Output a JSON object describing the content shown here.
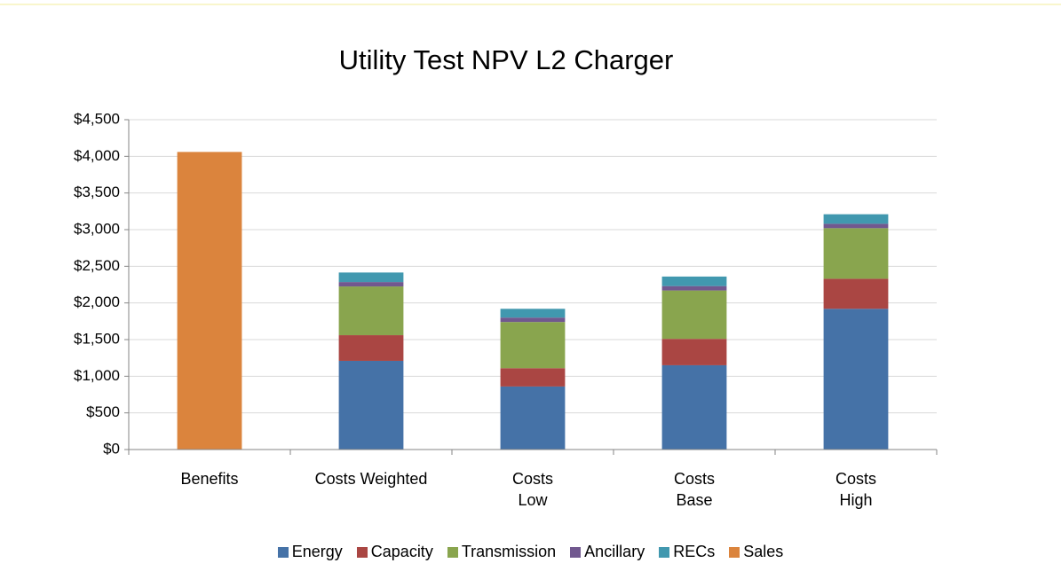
{
  "chart_data": {
    "type": "stacked_bar",
    "title": "Utility Test NPV L2 Charger",
    "categories": [
      "Benefits",
      "Costs Weighted",
      "Costs\nLow",
      "Costs\nBase",
      "Costs\nHigh"
    ],
    "series": [
      {
        "name": "Energy",
        "color": "#4572a7",
        "values": [
          null,
          1210,
          860,
          1150,
          1920
        ]
      },
      {
        "name": "Capacity",
        "color": "#aa4643",
        "values": [
          null,
          350,
          250,
          360,
          410
        ]
      },
      {
        "name": "Transmission",
        "color": "#89a54e",
        "values": [
          null,
          665,
          630,
          660,
          690
        ]
      },
      {
        "name": "Ancillary",
        "color": "#71588f",
        "values": [
          null,
          60,
          60,
          60,
          60
        ]
      },
      {
        "name": "RECs",
        "color": "#4198af",
        "values": [
          null,
          130,
          120,
          130,
          130
        ]
      },
      {
        "name": "Sales",
        "color": "#db843d",
        "values": [
          4060,
          null,
          null,
          null,
          null
        ]
      }
    ],
    "ylim": [
      0,
      4500
    ],
    "yticks": [
      {
        "value": 0,
        "label": "$0"
      },
      {
        "value": 500,
        "label": "$500"
      },
      {
        "value": 1000,
        "label": "$1,000"
      },
      {
        "value": 1500,
        "label": "$1,500"
      },
      {
        "value": 2000,
        "label": "$2,000"
      },
      {
        "value": 2500,
        "label": "$2,500"
      },
      {
        "value": 3000,
        "label": "$3,000"
      },
      {
        "value": 3500,
        "label": "$3,500"
      },
      {
        "value": 4000,
        "label": "$4,000"
      },
      {
        "value": 4500,
        "label": "$4,500"
      }
    ],
    "grid": true,
    "legend": "bottom"
  }
}
